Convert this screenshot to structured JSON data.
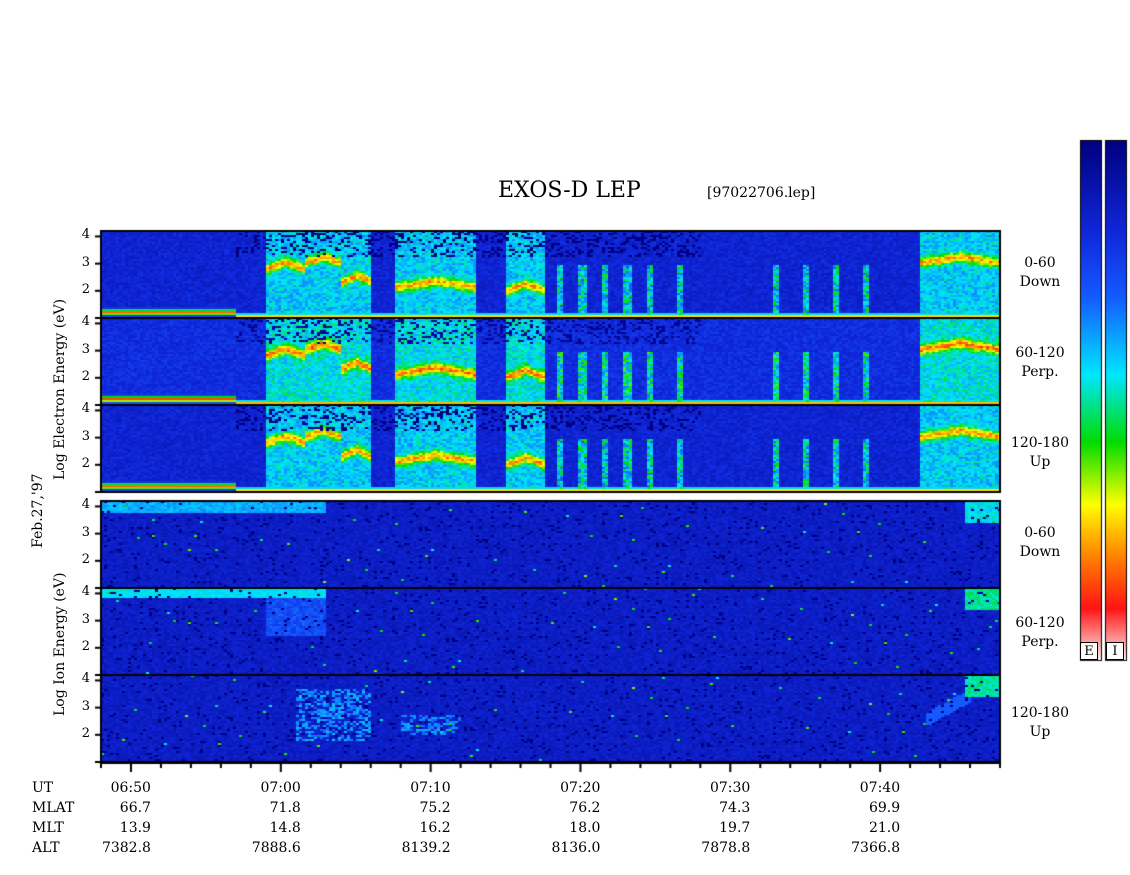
{
  "title": "EXOS-D LEP",
  "file_label": "[97022706.lep]",
  "date_label": "Feb.27,'97",
  "electron_ylabel": "Log Electron Energy (eV)",
  "ion_ylabel": "Log Ion Energy (eV)",
  "panels": [
    {
      "species": "electron",
      "pitch": "0-60",
      "dir": "Down"
    },
    {
      "species": "electron",
      "pitch": "60-120",
      "dir": "Perp."
    },
    {
      "species": "electron",
      "pitch": "120-180",
      "dir": "Up"
    },
    {
      "species": "ion",
      "pitch": "0-60",
      "dir": "Down"
    },
    {
      "species": "ion",
      "pitch": "60-120",
      "dir": "Perp."
    },
    {
      "species": "ion",
      "pitch": "120-180",
      "dir": "Up"
    }
  ],
  "colorbar_labels": [
    "E",
    "I"
  ],
  "ephemeris": {
    "row_names": [
      "UT",
      "MLAT",
      "MLT",
      "ALT"
    ],
    "UT": [
      "06:50",
      "07:00",
      "07:10",
      "07:20",
      "07:30",
      "07:40"
    ],
    "MLAT": [
      "66.7",
      "71.8",
      "75.2",
      "76.2",
      "74.3",
      "69.9"
    ],
    "MLT": [
      "13.9",
      "14.8",
      "16.2",
      "18.0",
      "19.7",
      "21.0"
    ],
    "ALT": [
      "7382.8",
      "7888.6",
      "8139.2",
      "8136.0",
      "7878.8",
      "7366.8"
    ]
  },
  "chart_data": {
    "type": "heatmap",
    "title": "EXOS-D LEP",
    "x_axis": {
      "label": "UT",
      "range": [
        "06:48",
        "07:48"
      ],
      "ticks": [
        "06:50",
        "07:00",
        "07:10",
        "07:20",
        "07:30",
        "07:40"
      ]
    },
    "y_axis": {
      "label": "Log Energy (eV)",
      "range": [
        1,
        4.2
      ],
      "ticks": [
        "2",
        "3",
        "4"
      ]
    },
    "colormap": [
      "#fff0f0",
      "#ff2020",
      "#ff8000",
      "#ffff00",
      "#00e000",
      "#00ffff",
      "#1060ff",
      "#000080"
    ],
    "series": [
      {
        "name": "Electron 0-60 Down",
        "band_log_energy": 1.2,
        "hot_regions_ut": [
          [
            "06:59",
            "07:03"
          ],
          [
            "07:03",
            "07:06"
          ],
          [
            "07:07",
            "07:12"
          ],
          [
            "07:42",
            "07:48"
          ]
        ]
      },
      {
        "name": "Electron 60-120 Perp.",
        "band_log_energy": 1.2,
        "hot_regions_ut": [
          [
            "06:59",
            "07:03"
          ],
          [
            "07:03",
            "07:06"
          ],
          [
            "07:07",
            "07:12"
          ],
          [
            "07:42",
            "07:48"
          ]
        ]
      },
      {
        "name": "Electron 120-180 Up",
        "band_log_energy": 1.2,
        "hot_regions_ut": [
          [
            "06:59",
            "07:03"
          ],
          [
            "07:03",
            "07:06"
          ],
          [
            "07:07",
            "07:12"
          ],
          [
            "07:42",
            "07:48"
          ]
        ]
      },
      {
        "name": "Ion 0-60 Down",
        "band_log_energy": 4.0,
        "hot_regions_ut": [
          [
            "06:50",
            "07:03"
          ],
          [
            "07:46",
            "07:48"
          ]
        ]
      },
      {
        "name": "Ion 60-120 Perp.",
        "band_log_energy": 4.0,
        "hot_regions_ut": [
          [
            "06:49",
            "07:03"
          ],
          [
            "07:46",
            "07:48"
          ]
        ]
      },
      {
        "name": "Ion 120-180 Up",
        "band_log_energy": 2.5,
        "hot_regions_ut": [
          [
            "07:01",
            "07:06"
          ],
          [
            "07:08",
            "07:12"
          ],
          [
            "07:46",
            "07:48"
          ]
        ]
      }
    ]
  }
}
